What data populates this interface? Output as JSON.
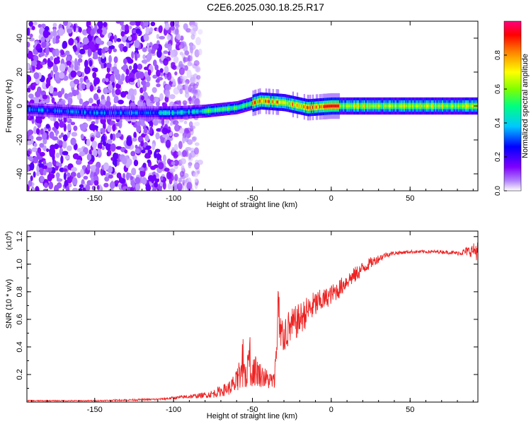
{
  "figure_title": "C2E6.2025.030.18.25.R17",
  "chart_data": [
    {
      "type": "heatmap",
      "title": "",
      "xlabel": "Height of straight line (km)",
      "ylabel": "Frequency (Hz)",
      "xlim": [
        -193,
        93
      ],
      "ylim": [
        -50,
        50
      ],
      "xticks": [
        -150,
        -100,
        -50,
        0,
        50
      ],
      "xtick_labels": [
        "-150",
        "-100",
        "-50",
        "0",
        "50"
      ],
      "yticks": [
        -40,
        -20,
        0,
        20,
        40
      ],
      "ytick_labels": [
        "-40",
        "-20",
        "0",
        "20",
        "40"
      ],
      "grid": false,
      "colorbar": {
        "label": "Normalized spectral amplitude",
        "range": [
          0,
          1
        ],
        "ticks": [
          0.0,
          0.2,
          0.4,
          0.6,
          0.8
        ],
        "tick_labels": [
          "0.0",
          "0.2",
          "0.4",
          "0.6",
          "0.8"
        ],
        "colors": [
          "#ffffff",
          "#8000ff",
          "#0000ff",
          "#00ffff",
          "#00ff00",
          "#ffff00",
          "#ff8000",
          "#ff0000",
          "#ff0080"
        ]
      },
      "ridge": {
        "description_points": [
          {
            "x": -193,
            "y": -2
          },
          {
            "x": -150,
            "y": -4
          },
          {
            "x": -100,
            "y": -4
          },
          {
            "x": -80,
            "y": -3
          },
          {
            "x": -60,
            "y": -1
          },
          {
            "x": -45,
            "y": 3
          },
          {
            "x": -30,
            "y": 2
          },
          {
            "x": -15,
            "y": -1
          },
          {
            "x": 0,
            "y": 0
          },
          {
            "x": 93,
            "y": 0
          }
        ]
      }
    },
    {
      "type": "line",
      "title": "",
      "xlabel": "Height of straight line (km)",
      "ylabel": "SNR (10 * v/v)",
      "y_multiplier_label": "(x10",
      "y_multiplier_exp": "4",
      "y_multiplier_close": ")",
      "xlim": [
        -193,
        93
      ],
      "ylim": [
        0,
        1.24
      ],
      "xticks": [
        -150,
        -100,
        -50,
        0,
        50
      ],
      "xtick_labels": [
        "-150",
        "-100",
        "-50",
        "0",
        "50"
      ],
      "yticks": [
        0.2,
        0.4,
        0.6,
        0.8,
        1.0,
        1.2
      ],
      "ytick_labels": [
        "0.2",
        "0.4",
        "0.6",
        "0.8",
        "1.0",
        "1.2"
      ],
      "grid": false,
      "color": "#ee2222",
      "series": [
        {
          "x": [
            -193,
            -150,
            -110,
            -100,
            -90,
            -80,
            -75,
            -70,
            -65,
            -60,
            -55,
            -50,
            -45,
            -40,
            -36,
            -34,
            -30,
            -25,
            -20,
            -15,
            -10,
            -5,
            0,
            5,
            10,
            15,
            20,
            25,
            30,
            35,
            40,
            50,
            60,
            70,
            80,
            85,
            90,
            93
          ],
          "values": [
            0.01,
            0.01,
            0.02,
            0.03,
            0.04,
            0.05,
            0.06,
            0.08,
            0.1,
            0.14,
            0.2,
            0.25,
            0.2,
            0.16,
            0.15,
            0.45,
            0.5,
            0.55,
            0.6,
            0.66,
            0.71,
            0.74,
            0.78,
            0.82,
            0.88,
            0.92,
            0.97,
            1.01,
            1.04,
            1.07,
            1.08,
            1.09,
            1.09,
            1.09,
            1.08,
            1.09,
            1.1,
            1.1
          ],
          "noise_amplitude": [
            0.004,
            0.004,
            0.008,
            0.01,
            0.015,
            0.02,
            0.03,
            0.04,
            0.05,
            0.09,
            0.12,
            0.14,
            0.09,
            0.07,
            0.06,
            0.18,
            0.15,
            0.13,
            0.12,
            0.11,
            0.1,
            0.08,
            0.07,
            0.07,
            0.06,
            0.06,
            0.05,
            0.04,
            0.03,
            0.02,
            0.015,
            0.012,
            0.012,
            0.012,
            0.015,
            0.03,
            0.05,
            0.08
          ]
        }
      ]
    }
  ]
}
